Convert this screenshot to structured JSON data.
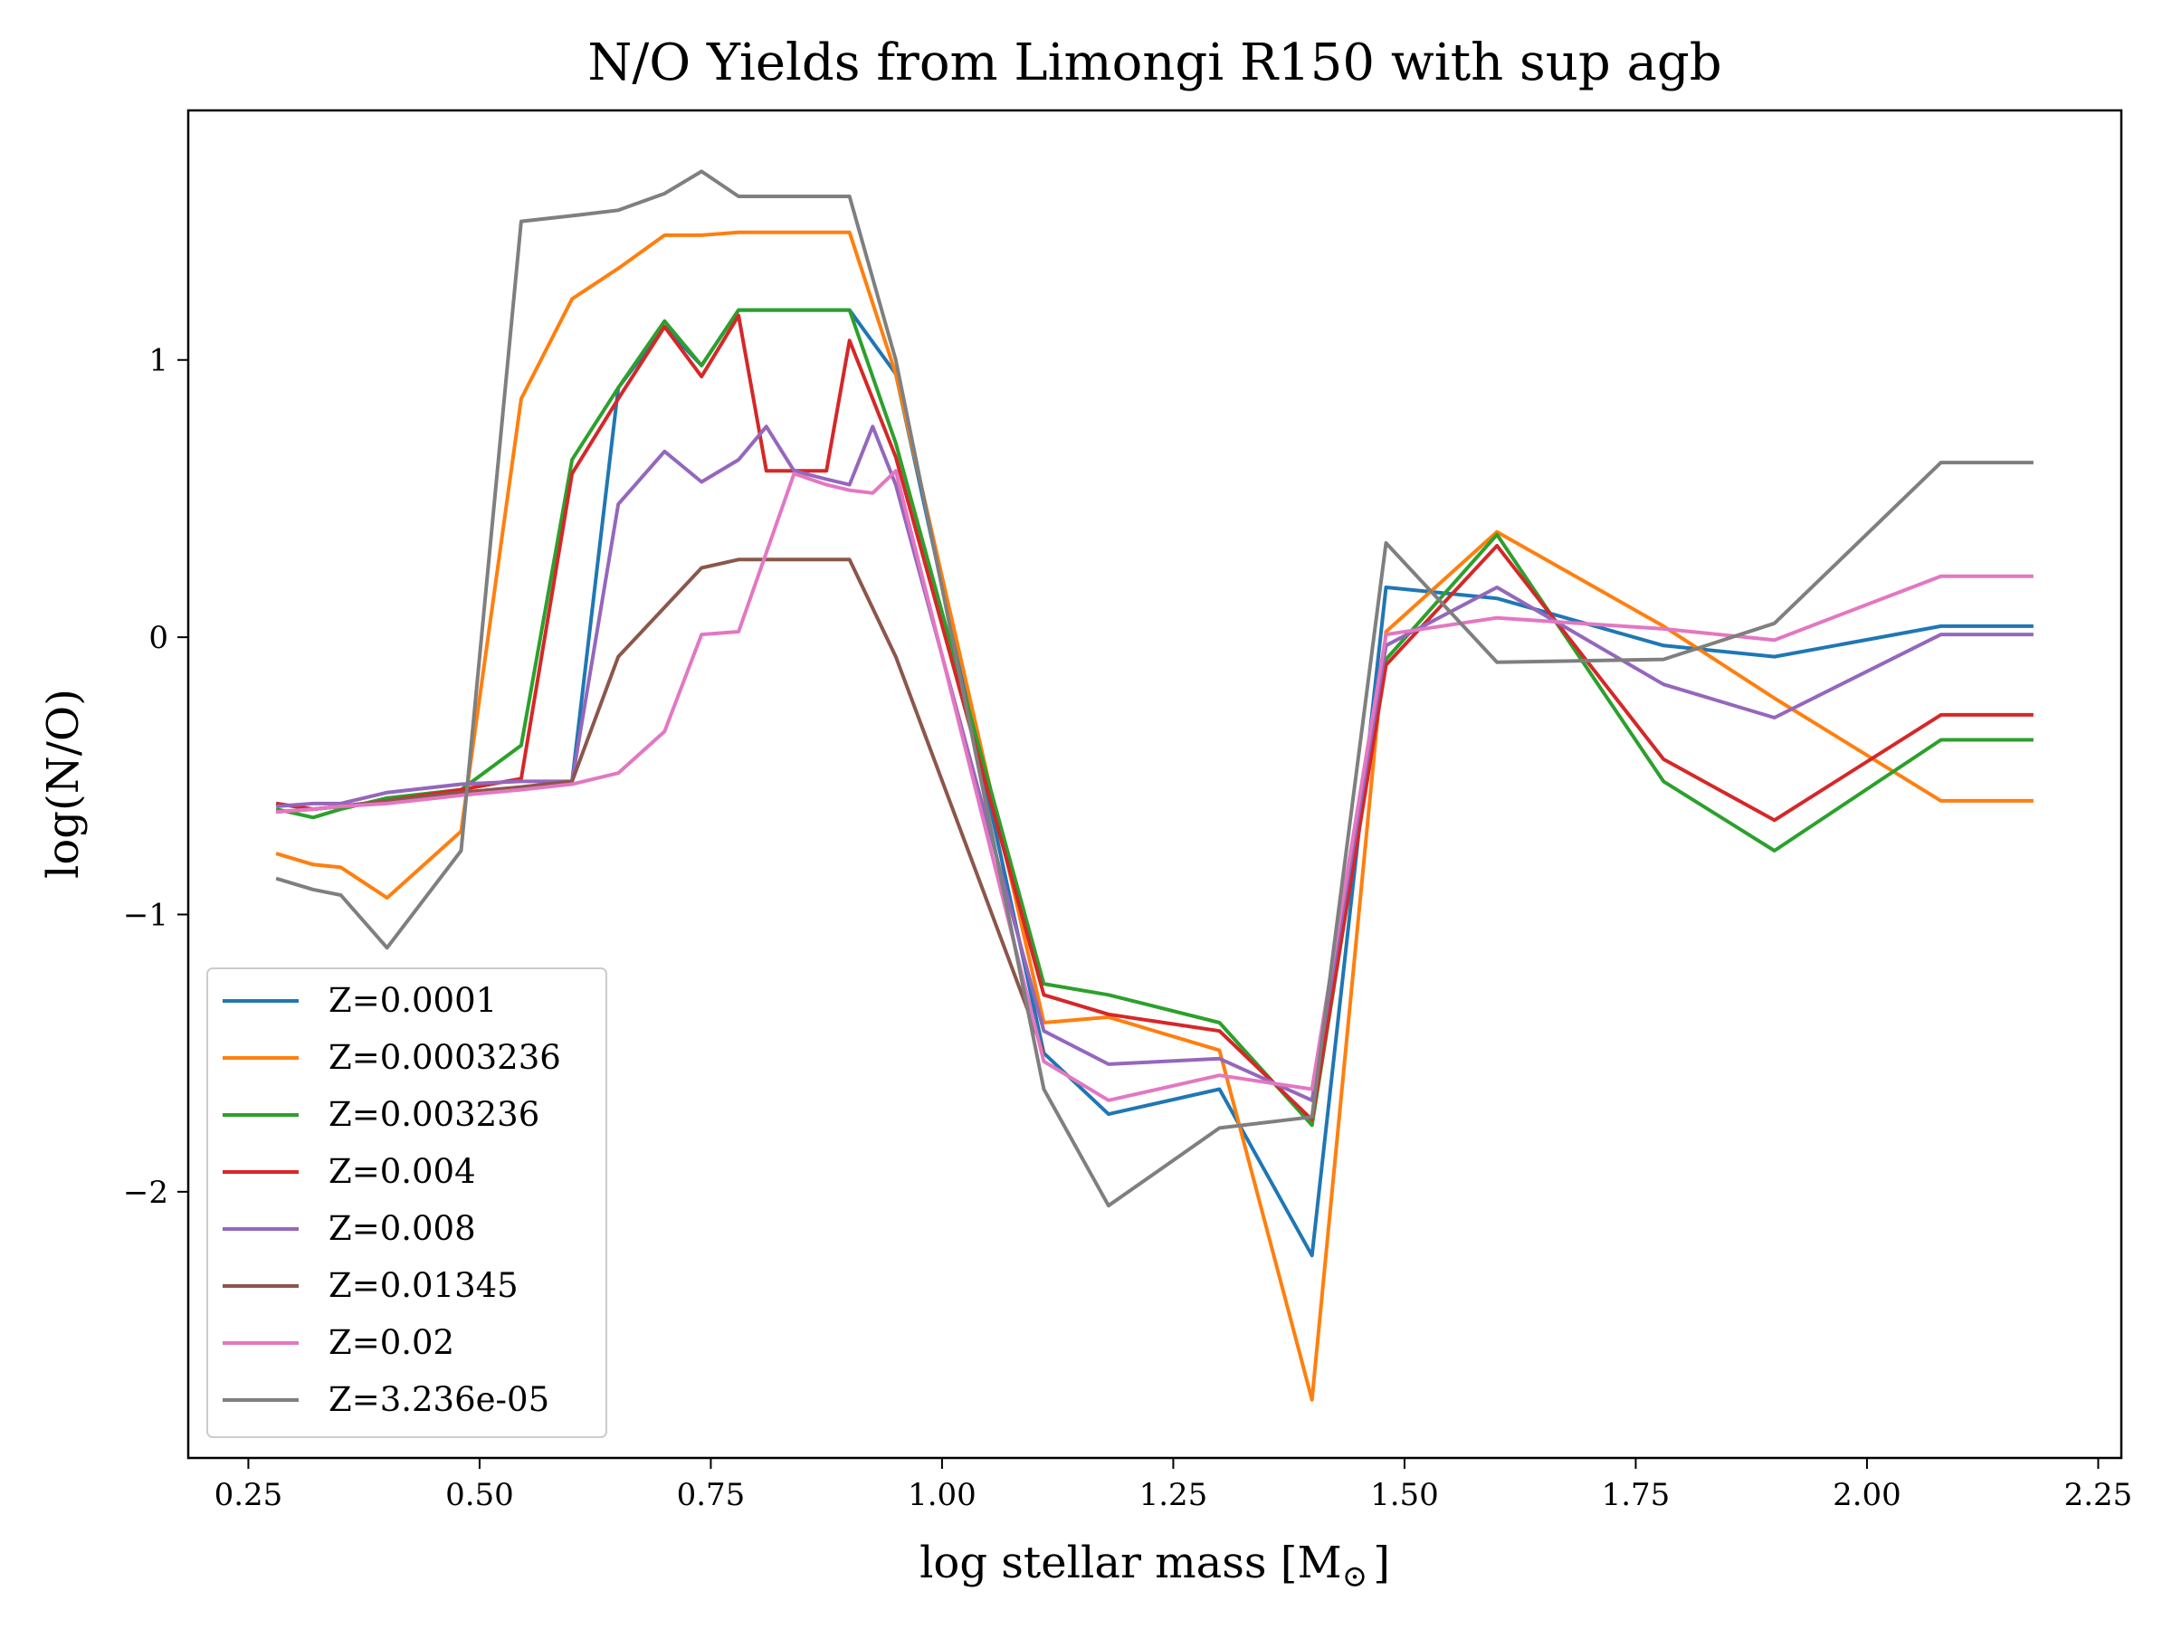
{
  "chart_data": {
    "type": "line",
    "title": "N/O Yields from Limongi R150 with sup agb",
    "xlabel": "log stellar mass [M",
    "xlabel_sub": "⊙",
    "xlabel_close": "]",
    "ylabel": "log(N/O)",
    "xlim": [
      0.185,
      2.275
    ],
    "ylim": [
      -2.96,
      1.9
    ],
    "xticks": [
      0.25,
      0.5,
      0.75,
      1.0,
      1.25,
      1.5,
      1.75,
      2.0,
      2.25
    ],
    "xtick_labels": [
      "0.25",
      "0.50",
      "0.75",
      "1.00",
      "1.25",
      "1.50",
      "1.75",
      "2.00",
      "2.25"
    ],
    "yticks": [
      1,
      0,
      -1,
      -2
    ],
    "ytick_labels": [
      "1",
      "0",
      "−1",
      "−2"
    ],
    "grid": false,
    "legend_position": "bottom-left",
    "series": [
      {
        "name": "Z=0.0001",
        "color": "#1f77b4",
        "points": [
          [
            0.28,
            -0.6
          ],
          [
            0.32,
            -0.62
          ],
          [
            0.35,
            -0.61
          ],
          [
            0.4,
            -0.59
          ],
          [
            0.48,
            -0.56
          ],
          [
            0.55,
            -0.54
          ],
          [
            0.6,
            -0.52
          ],
          [
            0.65,
            0.9
          ],
          [
            0.7,
            1.12
          ],
          [
            0.74,
            0.98
          ],
          [
            0.78,
            1.18
          ],
          [
            0.9,
            1.18
          ],
          [
            0.95,
            0.95
          ],
          [
            1.11,
            -1.5
          ],
          [
            1.18,
            -1.72
          ],
          [
            1.3,
            -1.63
          ],
          [
            1.4,
            -2.23
          ],
          [
            1.48,
            0.18
          ],
          [
            1.6,
            0.14
          ],
          [
            1.78,
            -0.03
          ],
          [
            1.9,
            -0.07
          ],
          [
            2.08,
            0.04
          ],
          [
            2.18,
            0.04
          ]
        ]
      },
      {
        "name": "Z=0.0003236",
        "color": "#ff7f0e",
        "points": [
          [
            0.28,
            -0.78
          ],
          [
            0.32,
            -0.82
          ],
          [
            0.35,
            -0.83
          ],
          [
            0.4,
            -0.94
          ],
          [
            0.48,
            -0.7
          ],
          [
            0.545,
            0.86
          ],
          [
            0.6,
            1.22
          ],
          [
            0.65,
            1.33
          ],
          [
            0.7,
            1.45
          ],
          [
            0.74,
            1.45
          ],
          [
            0.78,
            1.46
          ],
          [
            0.9,
            1.46
          ],
          [
            0.95,
            0.95
          ],
          [
            1.11,
            -1.39
          ],
          [
            1.18,
            -1.37
          ],
          [
            1.3,
            -1.49
          ],
          [
            1.4,
            -2.75
          ],
          [
            1.48,
            0.02
          ],
          [
            1.6,
            0.38
          ],
          [
            1.78,
            0.04
          ],
          [
            1.9,
            -0.22
          ],
          [
            2.08,
            -0.59
          ],
          [
            2.18,
            -0.59
          ]
        ]
      },
      {
        "name": "Z=0.003236",
        "color": "#2ca02c",
        "points": [
          [
            0.28,
            -0.62
          ],
          [
            0.32,
            -0.65
          ],
          [
            0.35,
            -0.62
          ],
          [
            0.4,
            -0.58
          ],
          [
            0.48,
            -0.55
          ],
          [
            0.545,
            -0.39
          ],
          [
            0.6,
            0.64
          ],
          [
            0.65,
            0.9
          ],
          [
            0.7,
            1.14
          ],
          [
            0.74,
            0.98
          ],
          [
            0.78,
            1.18
          ],
          [
            0.9,
            1.18
          ],
          [
            0.95,
            0.7
          ],
          [
            1.11,
            -1.25
          ],
          [
            1.18,
            -1.29
          ],
          [
            1.3,
            -1.39
          ],
          [
            1.4,
            -1.76
          ],
          [
            1.48,
            -0.08
          ],
          [
            1.6,
            0.37
          ],
          [
            1.78,
            -0.52
          ],
          [
            1.9,
            -0.77
          ],
          [
            2.08,
            -0.37
          ],
          [
            2.18,
            -0.37
          ]
        ]
      },
      {
        "name": "Z=0.004",
        "color": "#d62728",
        "points": [
          [
            0.28,
            -0.6
          ],
          [
            0.32,
            -0.62
          ],
          [
            0.35,
            -0.61
          ],
          [
            0.4,
            -0.59
          ],
          [
            0.48,
            -0.55
          ],
          [
            0.545,
            -0.51
          ],
          [
            0.6,
            0.59
          ],
          [
            0.65,
            0.86
          ],
          [
            0.7,
            1.12
          ],
          [
            0.74,
            0.94
          ],
          [
            0.78,
            1.16
          ],
          [
            0.81,
            0.6
          ],
          [
            0.84,
            0.6
          ],
          [
            0.875,
            0.6
          ],
          [
            0.9,
            1.07
          ],
          [
            0.95,
            0.65
          ],
          [
            1.11,
            -1.29
          ],
          [
            1.18,
            -1.36
          ],
          [
            1.3,
            -1.42
          ],
          [
            1.4,
            -1.74
          ],
          [
            1.48,
            -0.1
          ],
          [
            1.6,
            0.33
          ],
          [
            1.78,
            -0.44
          ],
          [
            1.9,
            -0.66
          ],
          [
            2.08,
            -0.28
          ],
          [
            2.18,
            -0.28
          ]
        ]
      },
      {
        "name": "Z=0.008",
        "color": "#9467bd",
        "points": [
          [
            0.28,
            -0.61
          ],
          [
            0.32,
            -0.6
          ],
          [
            0.35,
            -0.6
          ],
          [
            0.4,
            -0.56
          ],
          [
            0.48,
            -0.53
          ],
          [
            0.545,
            -0.52
          ],
          [
            0.6,
            -0.52
          ],
          [
            0.65,
            0.48
          ],
          [
            0.7,
            0.67
          ],
          [
            0.74,
            0.56
          ],
          [
            0.78,
            0.64
          ],
          [
            0.81,
            0.76
          ],
          [
            0.84,
            0.6
          ],
          [
            0.875,
            0.57
          ],
          [
            0.9,
            0.55
          ],
          [
            0.925,
            0.76
          ],
          [
            0.95,
            0.55
          ],
          [
            1.11,
            -1.42
          ],
          [
            1.18,
            -1.54
          ],
          [
            1.3,
            -1.52
          ],
          [
            1.4,
            -1.67
          ],
          [
            1.48,
            -0.03
          ],
          [
            1.6,
            0.18
          ],
          [
            1.78,
            -0.17
          ],
          [
            1.9,
            -0.29
          ],
          [
            2.08,
            0.01
          ],
          [
            2.18,
            0.01
          ]
        ]
      },
      {
        "name": "Z=0.01345",
        "color": "#8c564b",
        "points": [
          [
            0.28,
            -0.63
          ],
          [
            0.32,
            -0.62
          ],
          [
            0.35,
            -0.61
          ],
          [
            0.4,
            -0.59
          ],
          [
            0.48,
            -0.56
          ],
          [
            0.545,
            -0.54
          ],
          [
            0.6,
            -0.52
          ],
          [
            0.65,
            -0.07
          ],
          [
            0.74,
            0.25
          ],
          [
            0.78,
            0.28
          ],
          [
            0.9,
            0.28
          ],
          [
            0.95,
            -0.07
          ],
          [
            1.11,
            -1.5
          ]
        ]
      },
      {
        "name": "Z=0.02",
        "color": "#e377c2",
        "points": [
          [
            0.28,
            -0.63
          ],
          [
            0.32,
            -0.62
          ],
          [
            0.35,
            -0.61
          ],
          [
            0.4,
            -0.6
          ],
          [
            0.48,
            -0.57
          ],
          [
            0.545,
            -0.55
          ],
          [
            0.6,
            -0.53
          ],
          [
            0.65,
            -0.49
          ],
          [
            0.7,
            -0.34
          ],
          [
            0.74,
            0.01
          ],
          [
            0.78,
            0.02
          ],
          [
            0.84,
            0.59
          ],
          [
            0.875,
            0.55
          ],
          [
            0.9,
            0.53
          ],
          [
            0.925,
            0.52
          ],
          [
            0.95,
            0.6
          ],
          [
            1.11,
            -1.53
          ],
          [
            1.18,
            -1.67
          ],
          [
            1.3,
            -1.58
          ],
          [
            1.4,
            -1.63
          ],
          [
            1.48,
            0.01
          ],
          [
            1.6,
            0.07
          ],
          [
            1.78,
            0.03
          ],
          [
            1.9,
            -0.01
          ],
          [
            2.08,
            0.22
          ],
          [
            2.18,
            0.22
          ]
        ]
      },
      {
        "name": "Z=3.236e-05",
        "color": "#7f7f7f",
        "points": [
          [
            0.28,
            -0.87
          ],
          [
            0.32,
            -0.91
          ],
          [
            0.35,
            -0.93
          ],
          [
            0.4,
            -1.12
          ],
          [
            0.48,
            -0.77
          ],
          [
            0.545,
            1.5
          ],
          [
            0.6,
            1.52
          ],
          [
            0.65,
            1.54
          ],
          [
            0.7,
            1.6
          ],
          [
            0.74,
            1.68
          ],
          [
            0.78,
            1.59
          ],
          [
            0.9,
            1.59
          ],
          [
            0.95,
            1.0
          ],
          [
            1.11,
            -1.63
          ],
          [
            1.18,
            -2.05
          ],
          [
            1.3,
            -1.77
          ],
          [
            1.4,
            -1.73
          ],
          [
            1.48,
            0.34
          ],
          [
            1.6,
            -0.09
          ],
          [
            1.78,
            -0.08
          ],
          [
            1.9,
            0.05
          ],
          [
            2.08,
            0.63
          ],
          [
            2.18,
            0.63
          ]
        ]
      }
    ]
  }
}
